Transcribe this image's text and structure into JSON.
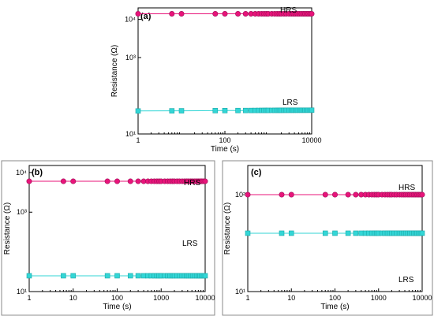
{
  "chart_data": [
    {
      "type": "scatter",
      "panel": "(a)",
      "xlabel": "Time (s)",
      "ylabel": "Resistance (Ω)",
      "xscale": "log",
      "yscale": "log",
      "xlim": [
        1,
        10000
      ],
      "ylim": [
        10,
        20000
      ],
      "xticks": [
        1,
        100,
        10000
      ],
      "yticks": [
        10,
        1000,
        10000
      ],
      "yticklabels": [
        "10¹",
        "10³",
        "10⁴"
      ],
      "series": [
        {
          "name": "HRS",
          "color": "#e8147a",
          "marker": "circle",
          "values": 14000
        },
        {
          "name": "LRS",
          "color": "#33d6d6",
          "marker": "square",
          "values_start": 40,
          "values_end": 42
        }
      ]
    },
    {
      "type": "scatter",
      "panel": "(b)",
      "xlabel": "Time (s)",
      "ylabel": "Resistance (Ω)",
      "xscale": "log",
      "yscale": "log",
      "xlim": [
        1,
        10000
      ],
      "ylim": [
        10,
        15000
      ],
      "xticks": [
        1,
        10,
        100,
        1000,
        10000
      ],
      "yticks": [
        10,
        1000,
        10000
      ],
      "yticklabels": [
        "10¹",
        "10³",
        "10⁴"
      ],
      "series": [
        {
          "name": "HRS",
          "color": "#e8147a",
          "marker": "circle",
          "values": 6000
        },
        {
          "name": "LRS",
          "color": "#33d6d6",
          "marker": "square",
          "values": 25
        }
      ]
    },
    {
      "type": "scatter",
      "panel": "(c)",
      "xlabel": "Time (s)",
      "ylabel": "Resistance (Ω)",
      "xscale": "log",
      "yscale": "log",
      "xlim": [
        1,
        10000
      ],
      "ylim": [
        10,
        200
      ],
      "xticks": [
        1,
        10,
        100,
        1000,
        10000
      ],
      "yticks": [
        10,
        100
      ],
      "yticklabels": [
        "10¹",
        "10²"
      ],
      "series": [
        {
          "name": "HRS",
          "color": "#e8147a",
          "marker": "circle",
          "values": 100
        },
        {
          "name": "LRS",
          "color": "#33d6d6",
          "marker": "square",
          "values": 40
        }
      ]
    }
  ]
}
